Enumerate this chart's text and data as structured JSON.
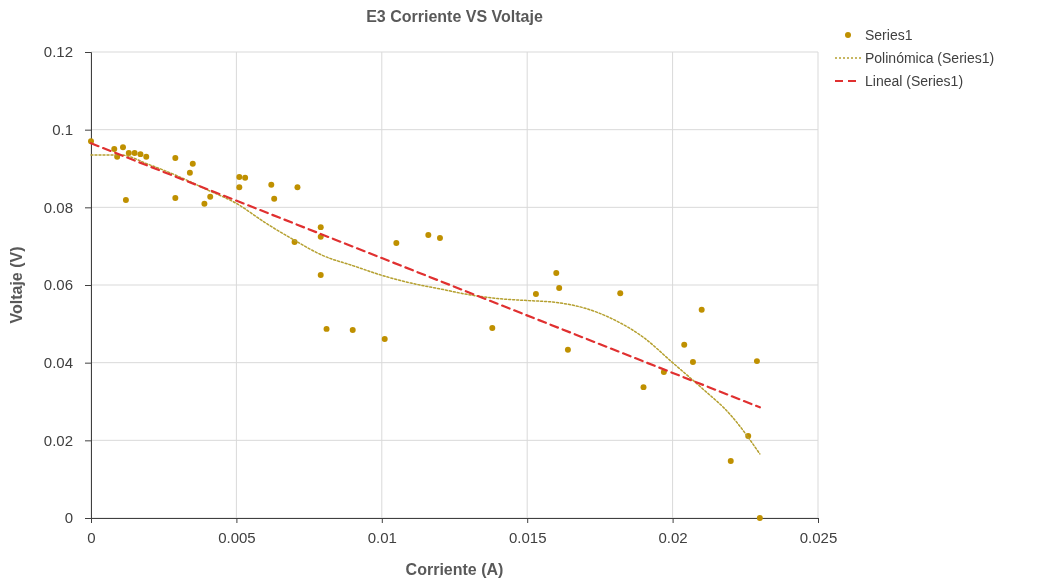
{
  "chart_data": {
    "type": "scatter",
    "title": "E3 Corriente VS Voltaje",
    "xlabel": "Corriente (A)",
    "ylabel": "Voltaje (V)",
    "xlim": [
      0,
      0.025
    ],
    "xticks": [
      0,
      0.005,
      0.01,
      0.015,
      0.02,
      0.025
    ],
    "ylim": [
      0,
      0.12
    ],
    "yticks": [
      0,
      0.02,
      0.04,
      0.06,
      0.08,
      0.1,
      0.12
    ],
    "grid": true,
    "legend": "top right",
    "series": [
      {
        "name": "Series1",
        "marker": "circle",
        "color": "#bf9000",
        "x": [
          0,
          0.0008,
          0.0009,
          0.0011,
          0.0012,
          0.0013,
          0.0015,
          0.0017,
          0.0019,
          0.0029,
          0.0029,
          0.0034,
          0.0035,
          0.0039,
          0.0041,
          0.0051,
          0.0051,
          0.0053,
          0.0062,
          0.0063,
          0.0071,
          0.007,
          0.0079,
          0.0079,
          0.0079,
          0.0081,
          0.009,
          0.0101,
          0.0105,
          0.0116,
          0.012,
          0.0138,
          0.0153,
          0.016,
          0.0161,
          0.0164,
          0.0182,
          0.019,
          0.0197,
          0.0204,
          0.0207,
          0.021,
          0.0229,
          0.0226,
          0.022,
          0.023
        ],
        "values": [
          0.097,
          0.095,
          0.093,
          0.0955,
          0.0819,
          0.094,
          0.094,
          0.0937,
          0.093,
          0.0927,
          0.0824,
          0.0889,
          0.0912,
          0.0809,
          0.0827,
          0.0878,
          0.0852,
          0.0876,
          0.0858,
          0.0822,
          0.0852,
          0.0711,
          0.0749,
          0.0724,
          0.0626,
          0.0487,
          0.0484,
          0.0461,
          0.0708,
          0.0729,
          0.0721,
          0.0489,
          0.0577,
          0.0631,
          0.0592,
          0.0433,
          0.0579,
          0.0337,
          0.0376,
          0.0446,
          0.0402,
          0.0536,
          0.0404,
          0.0211,
          0.0147,
          0
        ]
      },
      {
        "name": "Polinómica (Series1)",
        "type": "line",
        "line_style": "dotted",
        "color": "#b5a030",
        "x": [
          0,
          0.001,
          0.002,
          0.003,
          0.004,
          0.005,
          0.006,
          0.007,
          0.008,
          0.009,
          0.01,
          0.011,
          0.012,
          0.013,
          0.014,
          0.015,
          0.016,
          0.017,
          0.018,
          0.019,
          0.02,
          0.021,
          0.022,
          0.023
        ],
        "values": [
          0.0935,
          0.0935,
          0.091,
          0.088,
          0.0845,
          0.081,
          0.076,
          0.0715,
          0.0675,
          0.065,
          0.0625,
          0.0605,
          0.059,
          0.0575,
          0.0565,
          0.056,
          0.0555,
          0.054,
          0.051,
          0.0465,
          0.04,
          0.0335,
          0.0265,
          0.0165
        ]
      },
      {
        "name": "Lineal (Series1)",
        "type": "line",
        "line_style": "dashed",
        "color": "#e03030",
        "x": [
          0,
          0.023
        ],
        "values": [
          0.0965,
          0.0285
        ]
      }
    ]
  }
}
